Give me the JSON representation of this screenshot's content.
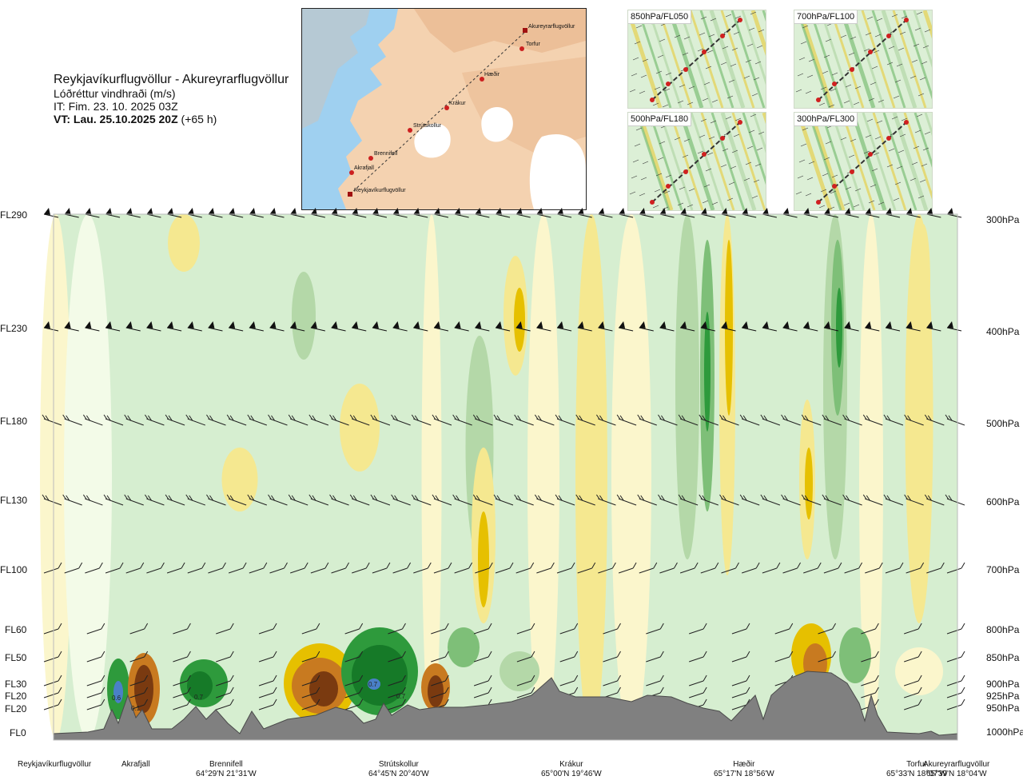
{
  "header": {
    "route": "Reykjavíkurflugvöllur - Akureyrarflugvöllur",
    "parameter": "Lóðréttur vindhraði (m/s)",
    "it": "IT: Fim. 23. 10. 2025 03Z",
    "vt_bold": "VT: Lau. 25.10.2025 20Z",
    "vt_rest": " (+65 h)"
  },
  "map": {
    "points": [
      {
        "name": "Akureyrarflugvöllur"
      },
      {
        "name": "Torfur"
      },
      {
        "name": "Hæðir"
      },
      {
        "name": "Krákur"
      },
      {
        "name": "Strútskollur"
      },
      {
        "name": "Brennifell"
      },
      {
        "name": "Akrafjall"
      },
      {
        "name": "Reykjavíkurflugvöllur"
      }
    ]
  },
  "mini_maps": [
    {
      "label": "850hPa/FL050"
    },
    {
      "label": "700hPa/FL100"
    },
    {
      "label": "500hPa/FL180"
    },
    {
      "label": "300hPa/FL300"
    }
  ],
  "levels_left": [
    "FL290",
    "FL230",
    "FL180",
    "FL130",
    "FL100",
    "FL60",
    "FL50",
    "FL30",
    "FL20",
    "FL20",
    "FL0"
  ],
  "levels_right": [
    "300hPa",
    "400hPa",
    "500hPa",
    "600hPa",
    "700hPa",
    "800hPa",
    "850hPa",
    "900hPa",
    "925hPa",
    "950hPa",
    "1000hPa"
  ],
  "locations": [
    {
      "name": "Reykjavíkurflugvöllur",
      "coord": ""
    },
    {
      "name": "Akrafjall",
      "coord": ""
    },
    {
      "name": "Brennifell",
      "coord": "64°29'N 21°31'W"
    },
    {
      "name": "Strútskollur",
      "coord": "64°45'N 20°40'W"
    },
    {
      "name": "Krákur",
      "coord": "65°00'N 19°46'W"
    },
    {
      "name": "Hæðir",
      "coord": "65°17'N 18°56'W"
    },
    {
      "name": "Torfur",
      "coord": "65°33'N 18°07'W"
    },
    {
      "name": "Akureyrarflugvöllur",
      "coord": "65°39'N 18°04'W"
    }
  ],
  "chart_data": {
    "type": "heatmap",
    "variable": "Lóðréttur vindhraði (m/s)",
    "x_labels": [
      "Reykjavíkurflugvöllur",
      "Akrafjall",
      "Brennifell",
      "Strútskollur",
      "Krákur",
      "Hæðir",
      "Torfur",
      "Akureyrarflugvöllur"
    ],
    "y_levels_hpa": [
      300,
      400,
      500,
      600,
      700,
      800,
      850,
      900,
      925,
      950,
      1000
    ],
    "y_levels_fl": [
      "FL290",
      "FL230",
      "FL180",
      "FL130",
      "FL100",
      "FL60",
      "FL50",
      "FL30",
      "FL20",
      "FL20",
      "FL0"
    ],
    "color_scale": {
      "strong_down": "#7a3a10",
      "down_3": "#c87a20",
      "down_2": "#e6c000",
      "down_1": "#f5e890",
      "down_0": "#fbf6cc",
      "neutral": "#f3fbe8",
      "up_0": "#d6eed0",
      "up_1": "#b4d8a8",
      "up_2": "#7ebf78",
      "up_3": "#2e9a3c",
      "up_4": "#167a28",
      "strong_up": "#4a80c8"
    },
    "annotations": [
      "0.6",
      "0.7",
      "0.7",
      "0.7",
      "0.1"
    ],
    "terrain_color": "#808080"
  }
}
